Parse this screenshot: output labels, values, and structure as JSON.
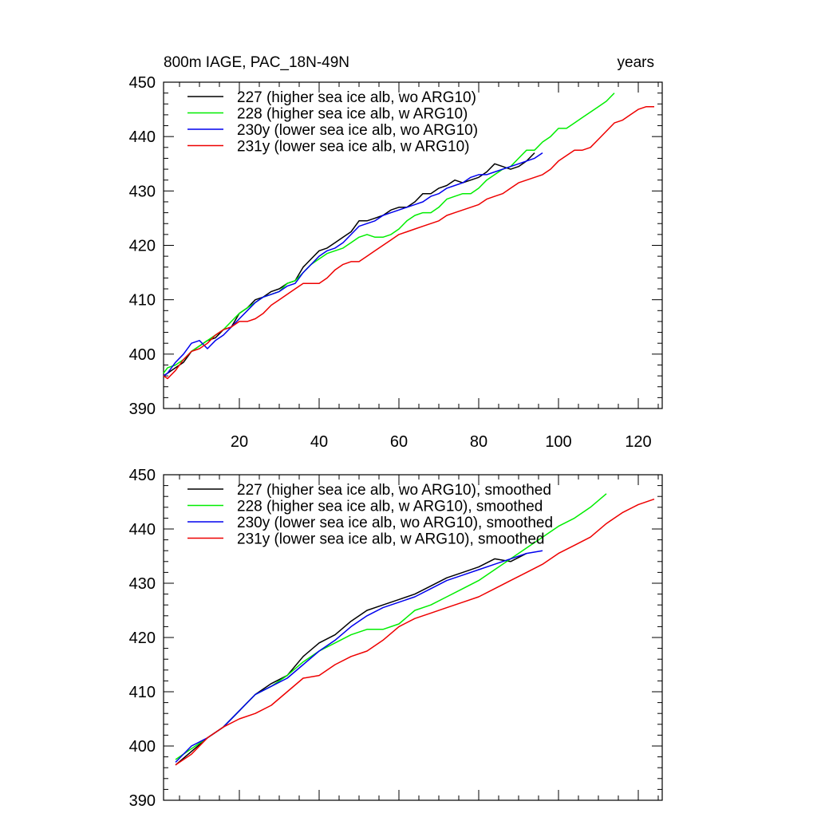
{
  "chart_data": [
    {
      "type": "line",
      "title_left": "800m IAGE, PAC_18N-49N",
      "title_right": "years",
      "xlim": [
        1,
        126
      ],
      "ylim": [
        390,
        450
      ],
      "x_ticks": [
        20,
        40,
        60,
        80,
        100,
        120
      ],
      "y_ticks": [
        390,
        400,
        410,
        420,
        430,
        440,
        450
      ],
      "show_x_tick_labels": true,
      "grid": false,
      "legend_position": "top-left",
      "series": [
        {
          "name": "227 (higher sea ice alb, wo ARG10)",
          "color": "#000000",
          "x": [
            1,
            2,
            4,
            6,
            8,
            10,
            12,
            14,
            16,
            18,
            20,
            22,
            24,
            26,
            28,
            30,
            32,
            34,
            36,
            38,
            40,
            42,
            44,
            46,
            48,
            50,
            52,
            54,
            56,
            58,
            60,
            62,
            64,
            66,
            68,
            70,
            72,
            74,
            76,
            78,
            80,
            82,
            84,
            86,
            88,
            90,
            92,
            94
          ],
          "y": [
            396,
            396.5,
            397.5,
            398.5,
            400.5,
            401.5,
            402.5,
            403.0,
            404.5,
            405.0,
            407.5,
            408.5,
            410.0,
            410.5,
            411.5,
            412.0,
            413.0,
            413.5,
            416.0,
            417.5,
            419.0,
            419.5,
            420.5,
            421.5,
            422.5,
            424.5,
            424.5,
            425.0,
            425.5,
            426.5,
            427.0,
            427.0,
            428.0,
            429.5,
            429.5,
            430.5,
            431.0,
            432.0,
            431.5,
            432.0,
            432.5,
            433.5,
            435.0,
            434.5,
            434.0,
            434.5,
            435.5,
            437.0
          ]
        },
        {
          "name": "228 (higher sea ice alb, w ARG10)",
          "color": "#00ee00",
          "x": [
            1,
            2,
            4,
            6,
            8,
            10,
            12,
            14,
            16,
            18,
            20,
            22,
            24,
            26,
            28,
            30,
            32,
            34,
            36,
            38,
            40,
            42,
            44,
            46,
            48,
            50,
            52,
            54,
            56,
            58,
            60,
            62,
            64,
            66,
            68,
            70,
            72,
            74,
            76,
            78,
            80,
            82,
            84,
            86,
            88,
            90,
            92,
            94,
            96,
            98,
            100,
            102,
            104,
            106,
            108,
            110,
            112,
            114
          ],
          "y": [
            396.5,
            397.5,
            398.0,
            399.0,
            400.5,
            401.5,
            402.5,
            403.5,
            404.5,
            406.0,
            407.5,
            408.5,
            409.5,
            410.5,
            411.0,
            411.5,
            413.0,
            413.5,
            415.0,
            416.5,
            417.5,
            418.5,
            419.0,
            419.5,
            420.5,
            421.5,
            422.0,
            421.5,
            421.5,
            422.0,
            423.0,
            424.5,
            425.5,
            426.0,
            426.0,
            427.0,
            428.5,
            429.0,
            429.5,
            429.5,
            430.5,
            432.0,
            433.0,
            434.0,
            434.5,
            436.0,
            437.5,
            437.5,
            439.0,
            440.0,
            441.5,
            441.5,
            442.5,
            443.5,
            444.5,
            445.5,
            446.5,
            448.0
          ]
        },
        {
          "name": "230y (lower sea ice alb, wo ARG10)",
          "color": "#0000ee",
          "x": [
            1,
            2,
            4,
            6,
            8,
            10,
            12,
            14,
            16,
            18,
            20,
            22,
            24,
            26,
            28,
            30,
            32,
            34,
            36,
            38,
            40,
            42,
            44,
            46,
            48,
            50,
            52,
            54,
            56,
            58,
            60,
            62,
            64,
            66,
            68,
            70,
            72,
            74,
            76,
            78,
            80,
            82,
            84,
            86,
            88,
            90,
            92,
            94,
            96
          ],
          "y": [
            396,
            396.5,
            398.5,
            400.0,
            402.0,
            402.5,
            401.0,
            402.5,
            403.5,
            405.0,
            406.5,
            408.0,
            409.5,
            410.5,
            411.0,
            411.5,
            412.5,
            413.0,
            415.0,
            416.5,
            418.0,
            419.0,
            419.5,
            420.5,
            422.0,
            423.5,
            424.0,
            424.5,
            425.5,
            426.0,
            426.5,
            427.0,
            427.5,
            428.0,
            429.0,
            429.5,
            430.5,
            431.0,
            431.5,
            432.5,
            433.0,
            433.0,
            433.5,
            434.0,
            434.5,
            435.0,
            435.5,
            436.0,
            437.0
          ]
        },
        {
          "name": "231y (lower sea ice alb, w ARG10)",
          "color": "#ee0000",
          "x": [
            1,
            2,
            4,
            6,
            8,
            10,
            12,
            14,
            16,
            18,
            20,
            22,
            24,
            26,
            28,
            30,
            32,
            34,
            36,
            38,
            40,
            42,
            44,
            46,
            48,
            50,
            52,
            54,
            56,
            58,
            60,
            62,
            64,
            66,
            68,
            70,
            72,
            74,
            76,
            78,
            80,
            82,
            84,
            86,
            88,
            90,
            92,
            94,
            96,
            98,
            100,
            102,
            104,
            106,
            108,
            110,
            112,
            114,
            116,
            118,
            120,
            122,
            124
          ],
          "y": [
            396,
            395.5,
            397.0,
            399.0,
            400.5,
            401.0,
            402.0,
            403.5,
            404.5,
            405.0,
            406.0,
            406.0,
            406.5,
            407.5,
            409.0,
            410.0,
            411.0,
            412.0,
            413.0,
            413.0,
            413.0,
            414.0,
            415.5,
            416.5,
            417.0,
            417.0,
            418.0,
            419.0,
            420.0,
            421.0,
            422.0,
            422.5,
            423.0,
            423.5,
            424.0,
            424.5,
            425.5,
            426.0,
            426.5,
            427.0,
            427.5,
            428.5,
            429.0,
            429.5,
            430.5,
            431.5,
            432.0,
            432.5,
            433.0,
            434.0,
            435.5,
            436.5,
            437.5,
            437.5,
            438.0,
            439.5,
            441.0,
            442.5,
            443.0,
            444.0,
            445.0,
            445.5,
            445.5
          ]
        }
      ]
    },
    {
      "type": "line",
      "title_left": "",
      "title_right": "",
      "xlim": [
        1,
        126
      ],
      "ylim": [
        390,
        450
      ],
      "x_ticks": [
        20,
        40,
        60,
        80,
        100,
        120
      ],
      "y_ticks": [
        390,
        400,
        410,
        420,
        430,
        440,
        450
      ],
      "show_x_tick_labels": false,
      "grid": false,
      "legend_position": "top-left",
      "series": [
        {
          "name": "227 (higher sea ice alb, wo ARG10), smoothed",
          "color": "#000000",
          "x": [
            4,
            8,
            12,
            16,
            20,
            24,
            28,
            32,
            36,
            40,
            44,
            48,
            52,
            56,
            60,
            64,
            68,
            72,
            76,
            80,
            84,
            88,
            92
          ],
          "y": [
            396.5,
            399.0,
            401.5,
            403.5,
            406.5,
            409.5,
            411.5,
            413.0,
            416.5,
            419.0,
            420.5,
            423.0,
            425.0,
            426.0,
            427.0,
            428.0,
            429.5,
            431.0,
            432.0,
            433.0,
            434.5,
            434.0,
            435.5
          ]
        },
        {
          "name": "228 (higher sea ice alb, w ARG10), smoothed",
          "color": "#00ee00",
          "x": [
            4,
            8,
            12,
            16,
            20,
            24,
            28,
            32,
            36,
            40,
            44,
            48,
            52,
            56,
            60,
            64,
            68,
            72,
            76,
            80,
            84,
            88,
            92,
            96,
            100,
            104,
            108,
            112
          ],
          "y": [
            397.5,
            399.5,
            401.5,
            403.5,
            406.5,
            409.5,
            411.0,
            413.0,
            415.5,
            417.5,
            419.0,
            420.5,
            421.5,
            421.5,
            422.5,
            425.0,
            426.0,
            427.5,
            429.0,
            430.5,
            432.5,
            434.5,
            436.5,
            438.5,
            440.5,
            442.0,
            444.0,
            446.5
          ]
        },
        {
          "name": "230y (lower sea ice alb, wo ARG10), smoothed",
          "color": "#0000ee",
          "x": [
            4,
            8,
            12,
            16,
            20,
            24,
            28,
            32,
            36,
            40,
            44,
            48,
            52,
            56,
            60,
            64,
            68,
            72,
            76,
            80,
            84,
            88,
            92,
            96
          ],
          "y": [
            397.0,
            400.0,
            401.5,
            403.5,
            406.5,
            409.5,
            411.0,
            412.5,
            415.0,
            417.5,
            419.5,
            422.0,
            424.0,
            425.5,
            426.5,
            427.5,
            429.0,
            430.5,
            431.5,
            432.5,
            433.5,
            434.5,
            435.5,
            436.0
          ]
        },
        {
          "name": "231y (lower sea ice alb, w ARG10), smoothed",
          "color": "#ee0000",
          "x": [
            4,
            8,
            12,
            16,
            20,
            24,
            28,
            32,
            36,
            40,
            44,
            48,
            52,
            56,
            60,
            64,
            68,
            72,
            76,
            80,
            84,
            88,
            92,
            96,
            100,
            104,
            108,
            112,
            116,
            120,
            124
          ],
          "y": [
            396.5,
            398.5,
            401.5,
            403.5,
            405.0,
            406.0,
            407.5,
            410.0,
            412.5,
            413.0,
            415.0,
            416.5,
            417.5,
            419.5,
            422.0,
            423.5,
            424.5,
            425.5,
            426.5,
            427.5,
            429.0,
            430.5,
            432.0,
            433.5,
            435.5,
            437.0,
            438.5,
            441.0,
            443.0,
            444.5,
            445.5
          ]
        }
      ]
    }
  ]
}
